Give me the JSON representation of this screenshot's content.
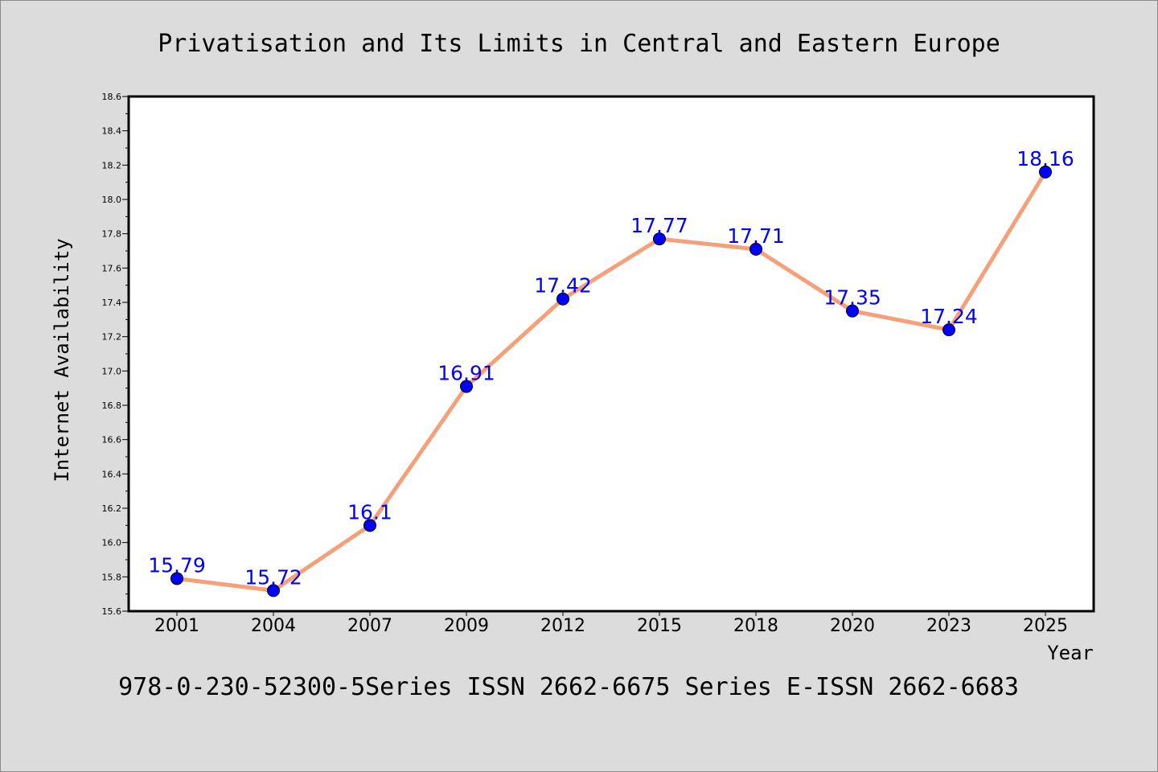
{
  "chart_data": {
    "type": "line",
    "title": "Privatisation and Its Limits in Central and Eastern Europe",
    "xlabel": "Year",
    "ylabel": "Internet Availability",
    "categories": [
      "2001",
      "2004",
      "2007",
      "2009",
      "2012",
      "2015",
      "2018",
      "2020",
      "2023",
      "2025"
    ],
    "series": [
      {
        "values": [
          15.79,
          15.72,
          16.1,
          16.91,
          17.42,
          17.77,
          17.71,
          17.35,
          17.24,
          18.16
        ],
        "labels": [
          "15.79",
          "15.72",
          "16.1",
          "16.91",
          "17.42",
          "17.77",
          "17.71",
          "17.35",
          "17.24",
          "18.16"
        ],
        "line_color": "#f4a07a",
        "marker_color": "#0000ff",
        "label_color": "#0000ff"
      }
    ],
    "ylim": [
      15.6,
      18.6
    ],
    "yticks": [
      "15.6",
      "15.8",
      "16.0",
      "16.2",
      "16.4",
      "16.6",
      "16.8",
      "17.0",
      "17.2",
      "17.4",
      "17.6",
      "17.8",
      "18.0",
      "18.2",
      "18.4",
      "18.6"
    ],
    "grid": false,
    "legend": "none"
  },
  "footer": {
    "text": "978-0-230-52300-5Series ISSN 2662-6675 Series E-ISSN 2662-6683"
  },
  "colors": {
    "background": "#dcdcdc",
    "plot_background": "#ffffff"
  }
}
